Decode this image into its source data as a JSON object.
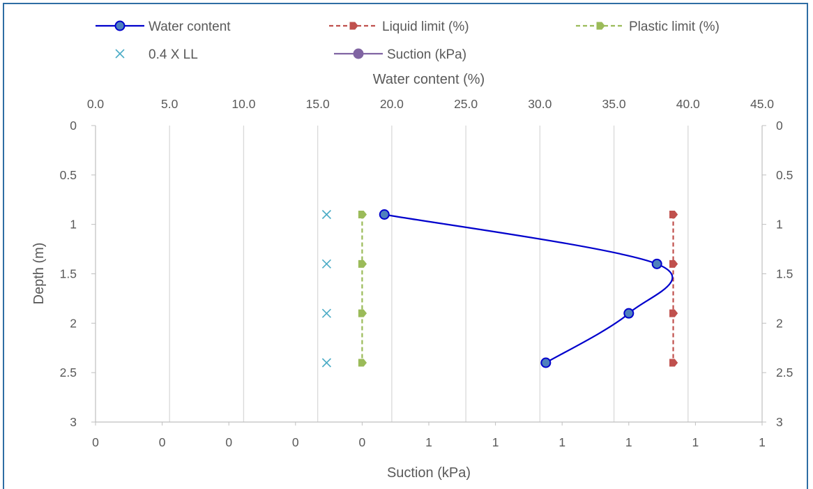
{
  "chart_data": {
    "type": "scatter",
    "title": "",
    "top_axis": {
      "label": "Water content (%)",
      "range": [
        0,
        45
      ],
      "tick_labels": [
        "0.0",
        "5.0",
        "10.0",
        "15.0",
        "20.0",
        "25.0",
        "30.0",
        "35.0",
        "40.0",
        "45.0"
      ]
    },
    "bottom_axis": {
      "label": "Suction (kPa)",
      "tick_labels": [
        "0",
        "0",
        "0",
        "0",
        "0",
        "1",
        "1",
        "1",
        "1",
        "1",
        "1"
      ]
    },
    "left_axis": {
      "label": "Depth (m)",
      "range": [
        0,
        3
      ],
      "reversed": true,
      "tick_labels": [
        "0",
        "0.5",
        "1",
        "1.5",
        "2",
        "2.5",
        "3"
      ]
    },
    "right_axis": {
      "range": [
        0,
        3
      ],
      "reversed": true,
      "tick_labels": [
        "0",
        "0.5",
        "1",
        "1.5",
        "2",
        "2.5",
        "3"
      ]
    },
    "grid": "vertical",
    "legend_position": "top",
    "series": [
      {
        "name": "Water content",
        "color": "#0000cc",
        "line": "smooth",
        "marker": "circle",
        "marker_fill": "#4f81bd",
        "points": [
          [
            19.5,
            0.9
          ],
          [
            37.9,
            1.4
          ],
          [
            36.0,
            1.9
          ],
          [
            30.4,
            2.4
          ]
        ]
      },
      {
        "name": "Liquid limit (%)",
        "color": "#c0504d",
        "line": "dashed",
        "marker": "arrow",
        "points": [
          [
            39.0,
            0.9
          ],
          [
            39.0,
            1.4
          ],
          [
            39.0,
            1.9
          ],
          [
            39.0,
            2.4
          ]
        ]
      },
      {
        "name": "Plastic limit (%)",
        "color": "#9bbb59",
        "line": "dashed",
        "marker": "arrow",
        "points": [
          [
            18.0,
            0.9
          ],
          [
            18.0,
            1.4
          ],
          [
            18.0,
            1.9
          ],
          [
            18.0,
            2.4
          ]
        ]
      },
      {
        "name": "0.4 X LL",
        "color": "#4bacc6",
        "line": "none",
        "marker": "x",
        "points": [
          [
            15.6,
            0.9
          ],
          [
            15.6,
            1.4
          ],
          [
            15.6,
            1.9
          ],
          [
            15.6,
            2.4
          ]
        ]
      },
      {
        "name": "Suction (kPa)",
        "color": "#8064a2",
        "line": "solid",
        "marker": "circle",
        "points": []
      }
    ]
  }
}
